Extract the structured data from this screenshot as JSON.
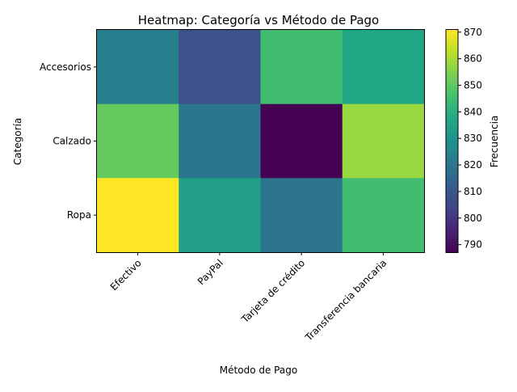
{
  "chart_data": {
    "type": "heatmap",
    "title": "Heatmap: Categoría vs Método de Pago",
    "xlabel": "Método de Pago",
    "ylabel": "Categoría",
    "x_categories": [
      "Efectivo",
      "PayPal",
      "Tarjeta de crédito",
      "Transferencia bancaria"
    ],
    "y_categories": [
      "Accesorios",
      "Calzado",
      "Ropa"
    ],
    "values": [
      [
        823,
        808,
        845,
        837
      ],
      [
        851,
        820,
        787,
        858
      ],
      [
        871,
        834,
        819,
        845
      ]
    ],
    "colormap": "viridis",
    "colorbar": {
      "label": "Frecuencia",
      "range": [
        787,
        871
      ],
      "ticks": [
        790,
        800,
        810,
        820,
        830,
        840,
        850,
        860,
        870
      ]
    },
    "grid": false
  }
}
